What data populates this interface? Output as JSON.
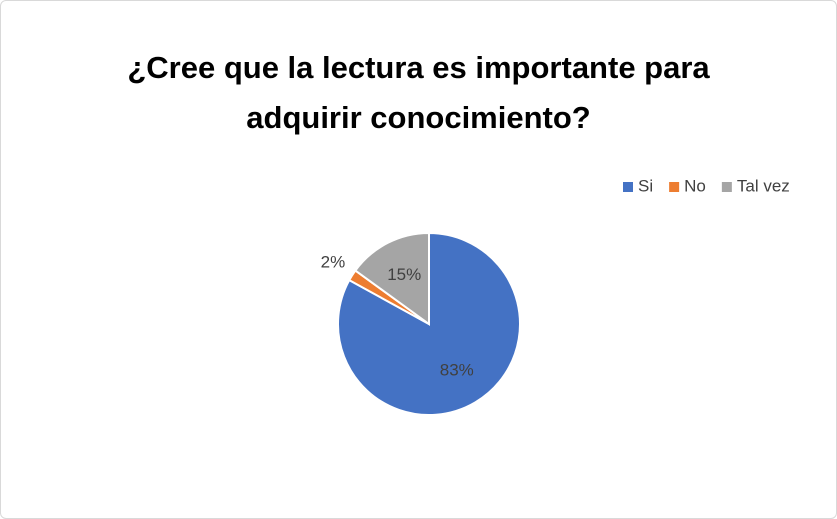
{
  "chart_data": {
    "type": "pie",
    "title": "¿Cree que la lectura es importante para adquirir conocimiento?",
    "categories": [
      "Si",
      "No",
      "Tal vez"
    ],
    "values": [
      83,
      2,
      15
    ],
    "value_labels": [
      "83%",
      "2%",
      "15%"
    ],
    "colors": [
      "#4472c4",
      "#ed7d31",
      "#a5a5a5"
    ],
    "legend": "top-right"
  }
}
